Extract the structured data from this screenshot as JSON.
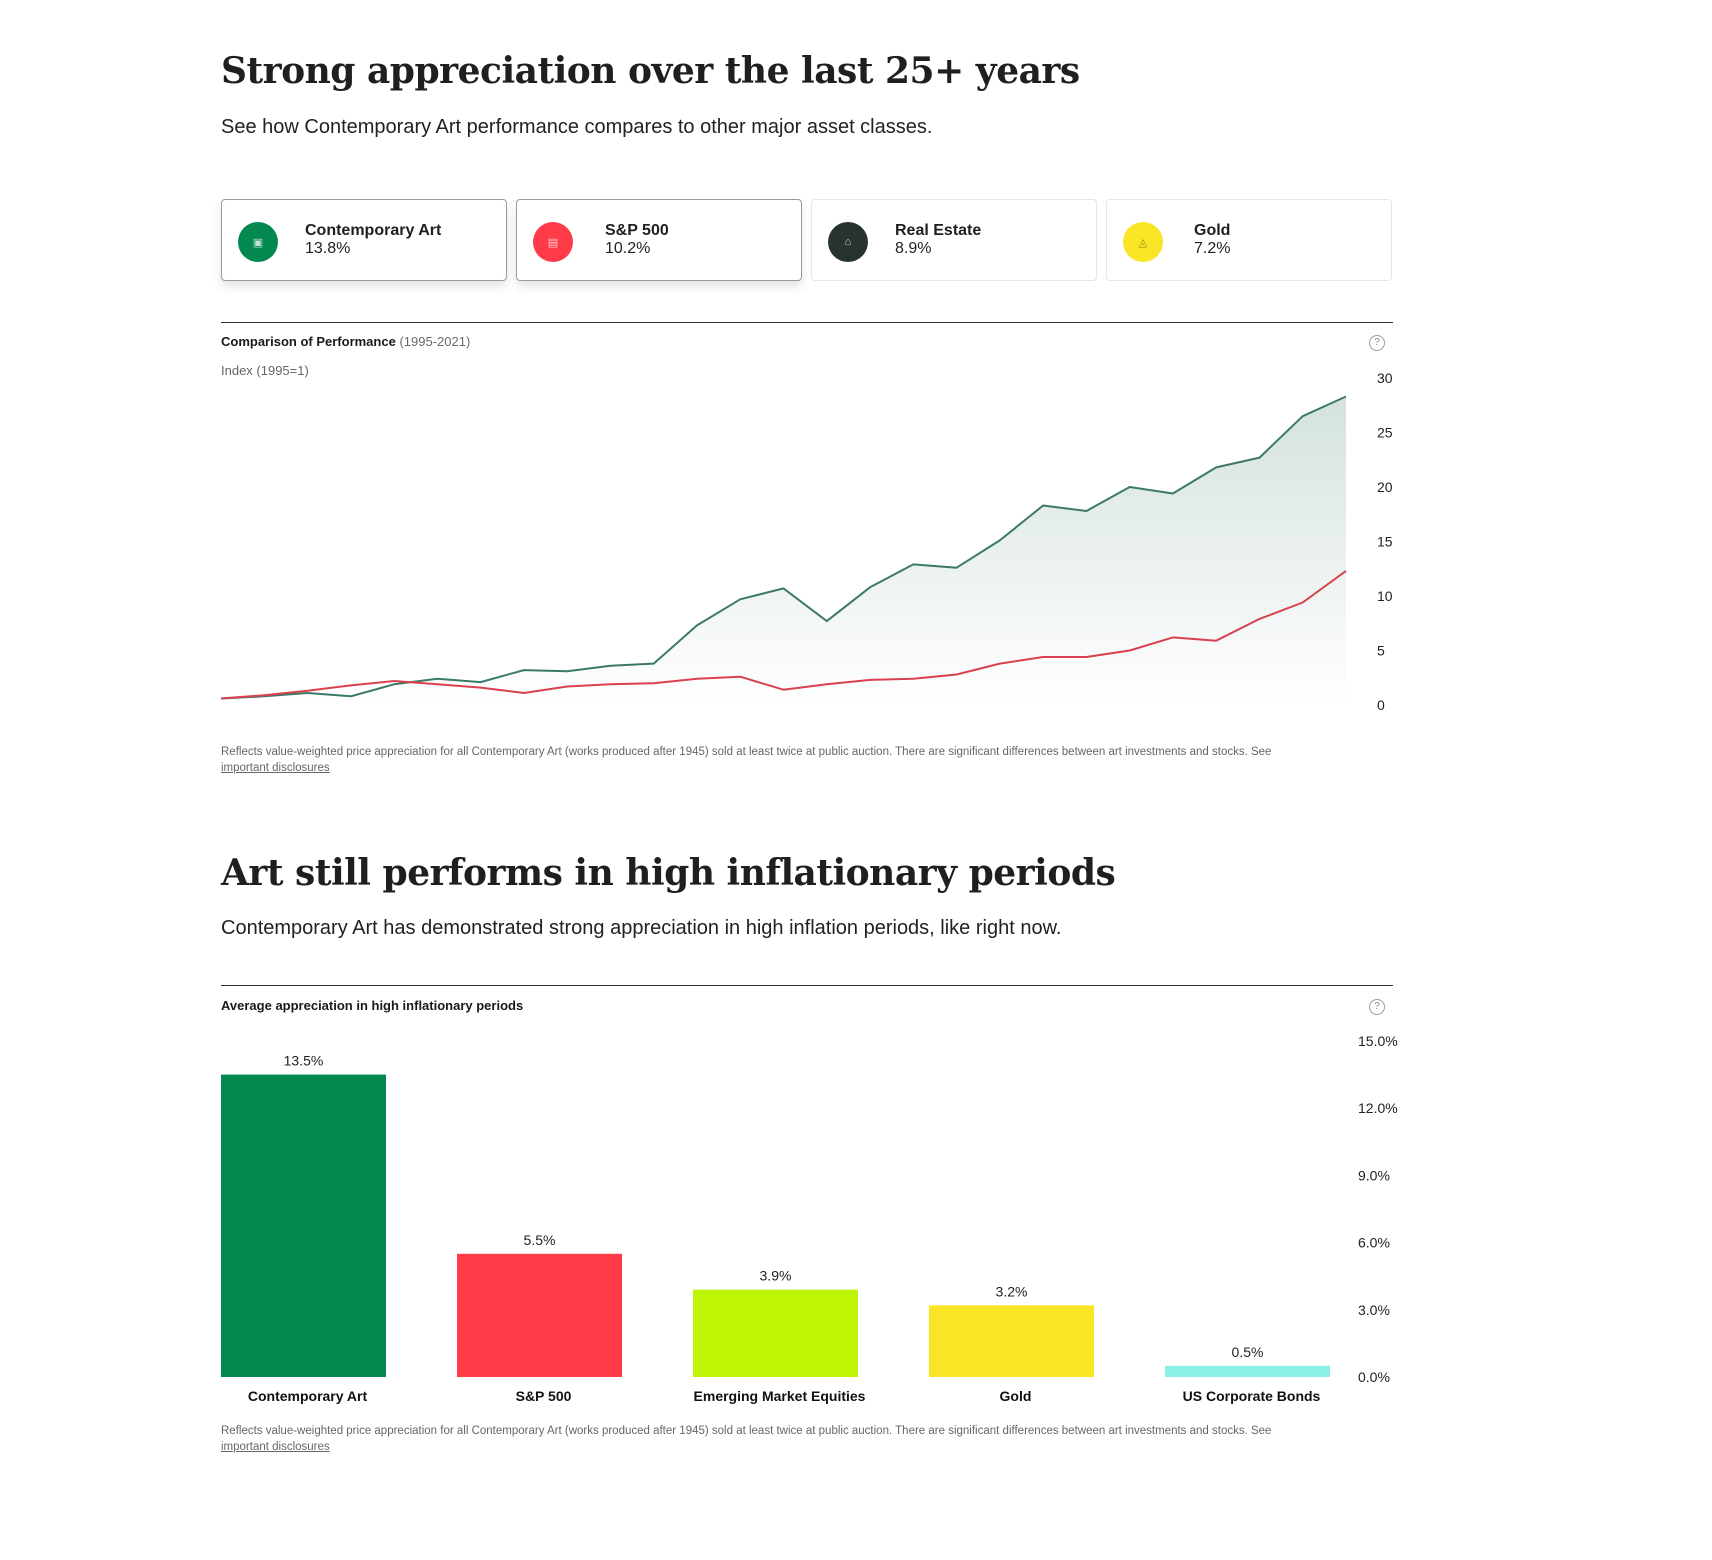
{
  "section1": {
    "title": "Strong appreciation over the last 25+ years",
    "subtitle": "See how Contemporary Art performance compares to other major asset classes."
  },
  "cards": [
    {
      "name": "Contemporary Art",
      "value": "13.8%",
      "color": "#03894F",
      "icon": "art-icon",
      "active": true
    },
    {
      "name": "S&P 500",
      "value": "10.2%",
      "color": "#FF3B49",
      "icon": "stocks-icon",
      "active": true
    },
    {
      "name": "Real Estate",
      "value": "8.9%",
      "color": "#283330",
      "icon": "house-icon",
      "active": false
    },
    {
      "name": "Gold",
      "value": "7.2%",
      "color": "#F9E526",
      "icon": "gold-bars-icon",
      "active": false
    }
  ],
  "chart1": {
    "title_bold": "Comparison of Performance",
    "title_range": "(1995-2021)",
    "index_label": "Index (1995=1)",
    "help_symbol": "?",
    "footnote_text": "Reflects value-weighted price appreciation for all Contemporary Art (works produced after 1945) sold at least twice at public auction. There are significant differences between art investments and stocks. See",
    "footnote_link": "important disclosures"
  },
  "section2": {
    "title": "Art still performs in high inflationary periods",
    "subtitle": "Contemporary Art has demonstrated strong appreciation in high inflation periods, like right now."
  },
  "chart2": {
    "title": "Average appreciation in high inflationary periods",
    "help_symbol": "?",
    "footnote_text": "Reflects value-weighted price appreciation for all Contemporary Art (works produced after 1945) sold at least twice at public auction. There are significant differences between art investments and stocks. See",
    "footnote_link": "important disclosures"
  },
  "chart_data": [
    {
      "type": "line",
      "title": "Comparison of Performance (1995-2021)",
      "ylabel": "Index (1995=1)",
      "ylim": [
        0,
        30
      ],
      "yticks": [
        30,
        25,
        20,
        15,
        10,
        5,
        0
      ],
      "y_axis_position": "right",
      "grid": false,
      "legend": "cards-above",
      "series": [
        {
          "name": "Contemporary Art",
          "color": "#3B7A66",
          "fill": true,
          "values": [
            0.6,
            0.8,
            1.1,
            0.8,
            1.9,
            2.4,
            2.1,
            3.2,
            3.1,
            3.6,
            3.8,
            7.3,
            9.7,
            10.7,
            7.7,
            10.8,
            12.9,
            12.6,
            15.1,
            18.3,
            17.8,
            20.0,
            19.4,
            21.8,
            22.7,
            26.5,
            28.3
          ]
        },
        {
          "name": "S&P 500",
          "color": "#D9414E",
          "fill": false,
          "values": [
            0.6,
            0.9,
            1.3,
            1.8,
            2.2,
            1.9,
            1.6,
            1.1,
            1.7,
            1.9,
            2.0,
            2.4,
            2.6,
            1.4,
            1.9,
            2.3,
            2.4,
            2.8,
            3.8,
            4.4,
            4.4,
            5.0,
            6.2,
            5.9,
            7.9,
            9.4,
            12.3
          ]
        }
      ]
    },
    {
      "type": "bar",
      "title": "Average appreciation in high inflationary periods",
      "ylim": [
        0,
        15
      ],
      "yticks": [
        "15.0%",
        "12.0%",
        "9.0%",
        "6.0%",
        "3.0%",
        "0.0%"
      ],
      "y_axis_position": "right",
      "grid": false,
      "categories": [
        "Contemporary Art",
        "S&P 500",
        "Emerging Market Equities",
        "Gold",
        "US Corporate Bonds"
      ],
      "values": [
        13.5,
        5.5,
        3.9,
        3.2,
        0.5
      ],
      "value_labels": [
        "13.5%",
        "5.5%",
        "3.9%",
        "3.2%",
        "0.5%"
      ],
      "colors": [
        "#03894F",
        "#FF3B49",
        "#BDF504",
        "#F9E526",
        "#8CF0E6"
      ]
    }
  ]
}
